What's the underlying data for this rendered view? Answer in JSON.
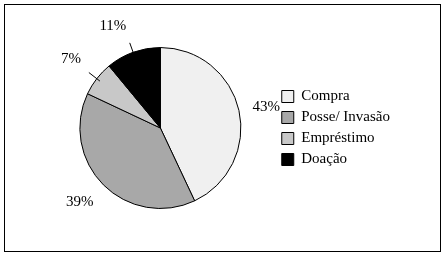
{
  "chart_data": {
    "type": "pie",
    "categories": [
      "Compra",
      "Posse/ Invasão",
      "Empréstimo",
      "Doação"
    ],
    "values": [
      43,
      39,
      7,
      11
    ],
    "value_labels": [
      "43%",
      "39%",
      "7%",
      "11%"
    ],
    "colors": [
      "#f0f0f0",
      "#a8a8a8",
      "#c8c8c8",
      "#000000"
    ],
    "data_labels": true,
    "legend": "right"
  }
}
